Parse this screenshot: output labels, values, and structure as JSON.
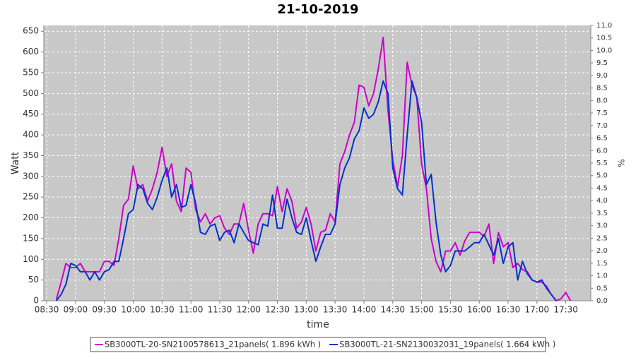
{
  "chart_data": {
    "type": "line",
    "title": "21-10-2019",
    "x_label": "time",
    "y_label": "Watt",
    "y2_label": "%",
    "x": [
      520,
      525,
      530,
      535,
      540,
      545,
      550,
      555,
      560,
      565,
      570,
      575,
      580,
      585,
      590,
      595,
      600,
      605,
      610,
      615,
      620,
      625,
      630,
      635,
      640,
      645,
      650,
      655,
      660,
      665,
      670,
      675,
      680,
      685,
      690,
      695,
      700,
      705,
      710,
      715,
      720,
      725,
      730,
      735,
      740,
      745,
      750,
      755,
      760,
      765,
      770,
      775,
      780,
      785,
      790,
      795,
      800,
      805,
      810,
      815,
      820,
      825,
      830,
      835,
      840,
      845,
      850,
      855,
      860,
      865,
      870,
      875,
      880,
      885,
      890,
      895,
      900,
      905,
      910,
      915,
      920,
      925,
      930,
      935,
      940,
      945,
      950,
      955,
      960,
      965,
      970,
      975,
      980,
      985,
      990,
      995,
      1000,
      1005,
      1010,
      1015,
      1020,
      1025,
      1030,
      1035,
      1040,
      1045,
      1050,
      1055
    ],
    "series": [
      {
        "name": "SB3000TL-20-SN2100578613_21panels( 1.896 kWh )",
        "color": "#cc00cc",
        "values": [
          3,
          45,
          90,
          80,
          80,
          90,
          70,
          70,
          70,
          70,
          95,
          95,
          85,
          150,
          230,
          245,
          325,
          270,
          280,
          240,
          270,
          310,
          370,
          300,
          330,
          240,
          215,
          320,
          310,
          220,
          190,
          210,
          185,
          200,
          205,
          175,
          160,
          185,
          185,
          235,
          170,
          115,
          185,
          210,
          210,
          205,
          275,
          215,
          270,
          240,
          175,
          190,
          225,
          185,
          120,
          165,
          170,
          210,
          190,
          330,
          360,
          400,
          430,
          520,
          515,
          470,
          500,
          560,
          635,
          460,
          340,
          275,
          350,
          575,
          520,
          490,
          330,
          270,
          150,
          95,
          70,
          120,
          120,
          140,
          110,
          145,
          165,
          165,
          165,
          155,
          185,
          90,
          165,
          130,
          140,
          80,
          90,
          75,
          70,
          50,
          45,
          45,
          35,
          15,
          0,
          5,
          20,
          0
        ]
      },
      {
        "name": "SB3000TL-21-SN2130032031_19panels( 1.664 kWh )",
        "color": "#0033cc",
        "values": [
          0,
          15,
          40,
          90,
          85,
          70,
          70,
          50,
          70,
          50,
          70,
          75,
          95,
          95,
          150,
          210,
          220,
          280,
          270,
          235,
          220,
          250,
          290,
          320,
          250,
          280,
          225,
          230,
          280,
          235,
          165,
          160,
          180,
          185,
          145,
          165,
          170,
          140,
          185,
          165,
          145,
          140,
          135,
          185,
          180,
          255,
          175,
          175,
          245,
          200,
          165,
          160,
          200,
          145,
          95,
          130,
          160,
          160,
          185,
          280,
          320,
          345,
          390,
          410,
          465,
          440,
          450,
          480,
          530,
          500,
          320,
          270,
          255,
          400,
          530,
          490,
          430,
          280,
          305,
          190,
          110,
          70,
          85,
          120,
          120,
          120,
          130,
          140,
          140,
          160,
          135,
          110,
          150,
          90,
          130,
          140,
          50,
          95,
          65,
          50,
          45,
          50,
          30,
          15,
          0,
          null,
          null,
          null
        ]
      }
    ],
    "xlim": [
      507,
      1076
    ],
    "xticks": [
      {
        "value": 510,
        "label": "08:30"
      },
      {
        "value": 540,
        "label": "09:00"
      },
      {
        "value": 570,
        "label": "09:30"
      },
      {
        "value": 600,
        "label": "10:00"
      },
      {
        "value": 630,
        "label": "10:30"
      },
      {
        "value": 660,
        "label": "11:00"
      },
      {
        "value": 690,
        "label": "11:30"
      },
      {
        "value": 720,
        "label": "12:00"
      },
      {
        "value": 750,
        "label": "12:30"
      },
      {
        "value": 780,
        "label": "13:00"
      },
      {
        "value": 810,
        "label": "13:30"
      },
      {
        "value": 840,
        "label": "14:00"
      },
      {
        "value": 870,
        "label": "14:30"
      },
      {
        "value": 900,
        "label": "15:00"
      },
      {
        "value": 930,
        "label": "15:30"
      },
      {
        "value": 960,
        "label": "16:00"
      },
      {
        "value": 990,
        "label": "16:30"
      },
      {
        "value": 1020,
        "label": "17:00"
      },
      {
        "value": 1050,
        "label": "17:30"
      }
    ],
    "ylim": [
      0,
      664
    ],
    "yticks": [
      0,
      50,
      100,
      150,
      200,
      250,
      300,
      350,
      400,
      450,
      500,
      550,
      600,
      650
    ],
    "y2lim": [
      0,
      11
    ],
    "y2ticks": [
      {
        "value": 0,
        "label": "0.0"
      },
      0.5,
      {
        "value": 1,
        "label": "1.0"
      },
      1.5,
      {
        "value": 2,
        "label": "2.0"
      },
      2.5,
      {
        "value": 3,
        "label": "3.0"
      },
      3.5,
      {
        "value": 4,
        "label": "4.0"
      },
      4.5,
      {
        "value": 5,
        "label": "5.0"
      },
      5.5,
      {
        "value": 6,
        "label": "6.0"
      },
      6.5,
      {
        "value": 7,
        "label": "7.0"
      },
      7.5,
      {
        "value": 8,
        "label": "8.0"
      },
      8.5,
      {
        "value": 9,
        "label": "9.0"
      },
      9.5,
      {
        "value": 10,
        "label": "10.0"
      },
      10.5,
      {
        "value": 11,
        "label": "11.0"
      }
    ],
    "grid": true
  }
}
